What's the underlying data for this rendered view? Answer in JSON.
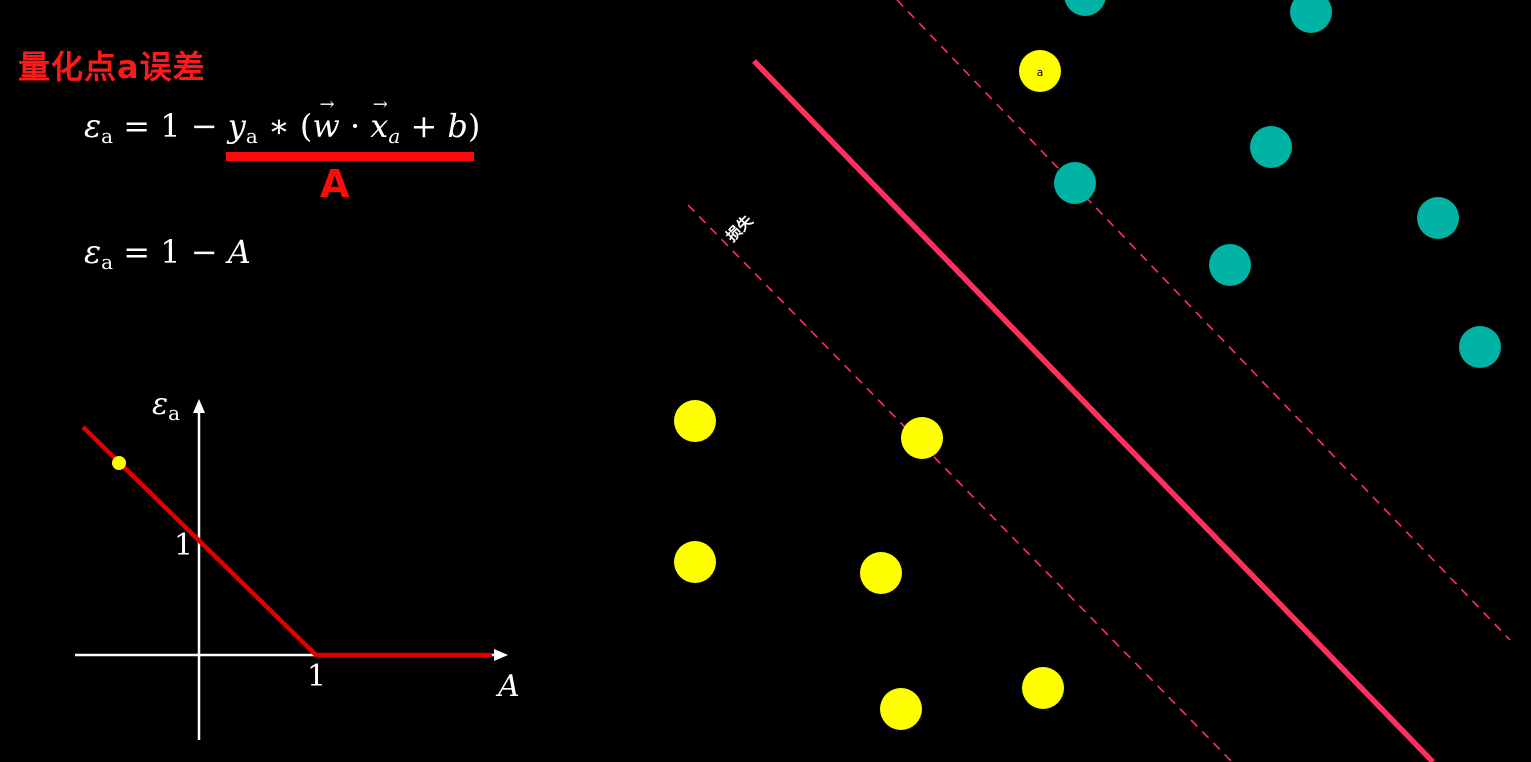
{
  "title": "量化点a误差",
  "formula1": {
    "lhs_sym": "ε",
    "lhs_sub": "a",
    "eq": " = 1 − ",
    "y": "y",
    "y_sub": "a",
    "star": " ∗ (",
    "w": "w",
    "dot": " · ",
    "x": "x",
    "x_sub": "a",
    "tail": " + ",
    "b": "b",
    "close": ")",
    "underline_label": "A"
  },
  "formula2": {
    "lhs_sym": "ε",
    "lhs_sub": "a",
    "eq": " = 1 − ",
    "A": "A"
  },
  "graph": {
    "y_axis_label_sym": "ε",
    "y_axis_label_sub": "a",
    "x_axis_label": "A",
    "y_tick": "1",
    "x_tick": "1",
    "line_color": "#e00000",
    "point_color": "#ffff00"
  },
  "scatter": {
    "point_a_label": "a",
    "margin_label": "损失",
    "hyperplane_color": "#ff2f5e",
    "positive_color": "#00b3a4",
    "negative_color": "#ffff00"
  }
}
